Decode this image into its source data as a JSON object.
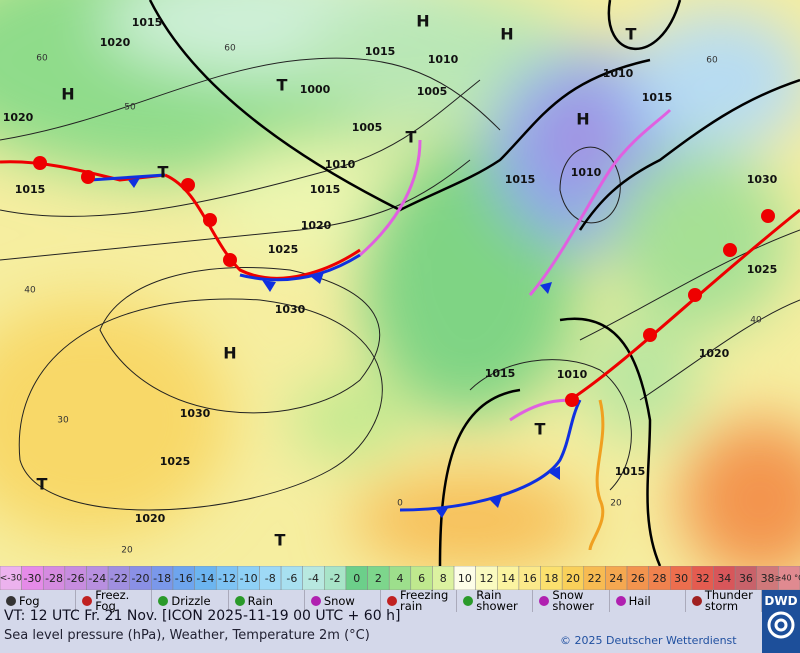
{
  "map": {
    "pressure_labels": [
      1015,
      1020,
      1020,
      1015,
      1000,
      1005,
      1010,
      1015,
      1020,
      1025,
      1030,
      1015,
      1010,
      1005,
      1010,
      1015,
      1015,
      1010,
      1030,
      1025,
      1020,
      1015,
      1010,
      1015,
      1030,
      1025,
      1020
    ],
    "isotherm_labels": [
      60,
      60,
      50,
      40,
      30,
      20,
      40,
      60,
      20,
      0
    ],
    "high_marks": [
      "H",
      "H",
      "H",
      "H",
      "H"
    ],
    "low_marks": [
      "T",
      "T",
      "T",
      "T",
      "T",
      "T",
      "T"
    ]
  },
  "temperature_scale": {
    "low_label": "<-30",
    "values": [
      -30,
      -28,
      -26,
      -24,
      -22,
      -20,
      -18,
      -16,
      -14,
      -12,
      -10,
      -8,
      -6,
      -4,
      -2,
      0,
      2,
      4,
      6,
      8,
      10,
      12,
      14,
      16,
      18,
      20,
      22,
      24,
      26,
      28,
      30,
      32,
      34,
      36,
      38
    ],
    "high_label": "≥40 °C",
    "low_color": "#ecb2ee",
    "colors": [
      "#e58be8",
      "#d58be0",
      "#c78cdf",
      "#b88fe0",
      "#a08fe0",
      "#8a90e6",
      "#7a98ea",
      "#6ea5ee",
      "#6cb5f0",
      "#7ec3f4",
      "#8ed0f6",
      "#9ed9f6",
      "#a8e0f0",
      "#b8e8e0",
      "#a8e4c8",
      "#6ccf8a",
      "#7dd68c",
      "#9ddf8c",
      "#bfe98e",
      "#dcf2a0",
      "#fdfde8",
      "#fafac0",
      "#fbf4a0",
      "#fbe98a",
      "#fbe06e",
      "#f9d05a",
      "#f7bb52",
      "#f5a850",
      "#f3944e",
      "#f0824e",
      "#ec6e4e",
      "#e45c50",
      "#d8565a",
      "#c8626a",
      "#d0787a"
    ],
    "high_color": "#e08a90"
  },
  "legend": [
    "Fog",
    "Freez. Fog",
    "Drizzle",
    "Rain",
    "Snow",
    "Freezing rain",
    "Rain shower",
    "Snow shower",
    "Hail",
    "Thunder storm"
  ],
  "footer": {
    "valid_time": "VT: 12 UTC Fr.  21 Nov. [ICON 2025-11-19  00 UTC + 60 h]",
    "description": "Sea level pressure (hPa), Weather, Temperature 2m (°C)",
    "copyright": "© 2025 Deutscher Wetterdienst",
    "logo": "DWD"
  }
}
